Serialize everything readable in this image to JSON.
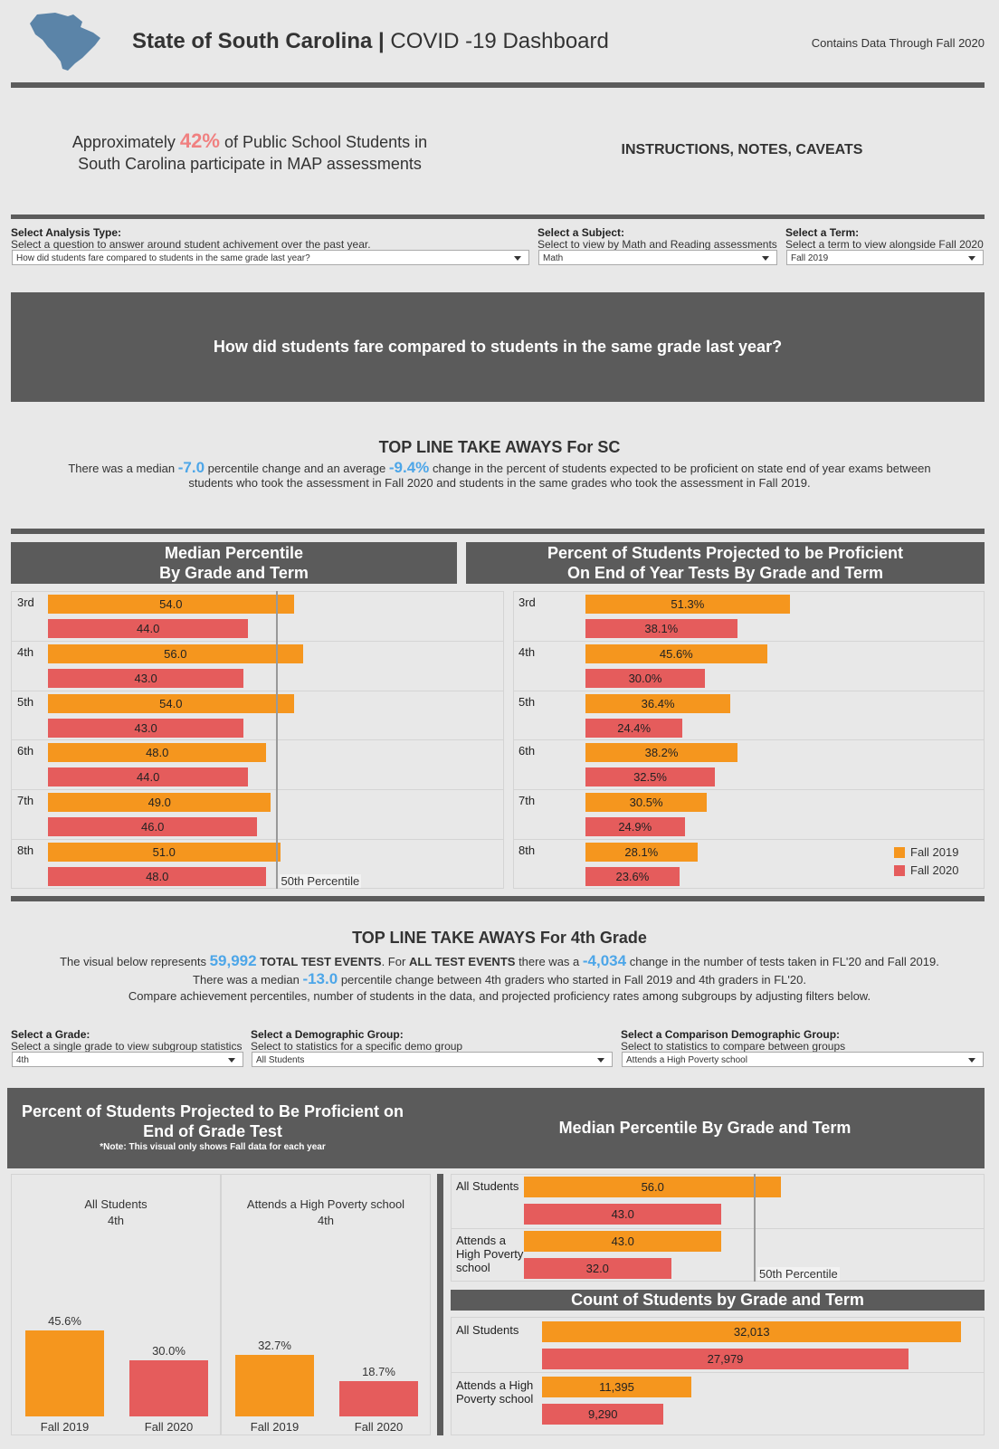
{
  "header": {
    "title_bold": "State of South Carolina |",
    "title_rest": "COVID -19 Dashboard",
    "note": "Contains Data Through Fall 2020"
  },
  "intro": {
    "pre": "Approximately",
    "highlight": "42%",
    "post": "of Public School Students in South Carolina participate in MAP assessments"
  },
  "instructions": "INSTRUCTIONS, NOTES, CAVEATS",
  "filters_top": [
    {
      "label": "Select Analysis Type:",
      "description": "Select a question to answer around student achivement over the past year.",
      "value": "How did students fare compared to students in the same grade last year?"
    },
    {
      "label": "Select a Subject:",
      "description": "Select to view by Math and Reading assessments",
      "value": "Math"
    },
    {
      "label": "Select a Term:",
      "description": "Select a term to view alongside Fall 2020",
      "value": "Fall 2019"
    }
  ],
  "question": "How did students fare compared to students in the same grade last year?",
  "takeaways_sc": {
    "title": "TOP LINE TAKE AWAYS For SC",
    "text": [
      "There was a median",
      "-7.0",
      "percentile change and an average",
      "-9.4%",
      "change in the percent of students expected to be proficient on state end of year exams between students who took the assessment in Fall 2020 and students in the same grades who took the assessment in Fall 2019."
    ]
  },
  "takeaways_grade": {
    "title": "TOP LINE TAKE AWAYS For 4th Grade",
    "line1": [
      "The visual below represents",
      "59,992",
      "TOTAL TEST EVENTS",
      ". For",
      "ALL TEST EVENTS",
      "there was a",
      "-4,034",
      "change in the number of tests taken in FL'20 and Fall 2019."
    ],
    "line2": [
      "There was a median",
      "-13.0",
      "percentile change between 4th graders who started in Fall 2019 and 4th graders in FL'20."
    ],
    "line3": "Compare achievement percentiles, number of students in the data, and projected proficiency rates among subgroups by adjusting filters below."
  },
  "filters_bottom": [
    {
      "label": "Select a Grade:",
      "description": "Select a single grade to view subgroup statistics",
      "value": "4th"
    },
    {
      "label": "Select a Demographic Group:",
      "description": "Select to statistics for a specific demo group",
      "value": "All Students"
    },
    {
      "label": "Select a Comparison Demographic Group:",
      "description": "Select to statistics to compare between groups",
      "value": "Attends a High Poverty school"
    }
  ],
  "chart_data": [
    {
      "type": "hbar",
      "title": [
        "Median Percentile",
        "By Grade and Term"
      ],
      "categories": [
        "3rd",
        "4th",
        "5th",
        "6th",
        "7th",
        "8th"
      ],
      "series": [
        {
          "color": "#f5961e",
          "values": [
            54,
            56,
            54,
            48,
            49,
            51
          ],
          "value_labels": [
            "54.0",
            "56.0",
            "54.0",
            "48.0",
            "49.0",
            "51.0"
          ]
        },
        {
          "color": "#e55c5c",
          "values": [
            44,
            43,
            43,
            44,
            46,
            48
          ],
          "value_labels": [
            "44.0",
            "43.0",
            "43.0",
            "44.0",
            "46.0",
            "48.0"
          ]
        }
      ],
      "xlim": [
        0,
        100
      ],
      "reference_line": {
        "value": 50,
        "label": "50th Percentile"
      }
    },
    {
      "type": "hbar",
      "title": [
        "Percent of Students Projected to be Proficient",
        "On End of Year Tests By Grade and Term"
      ],
      "categories": [
        "3rd",
        "4th",
        "5th",
        "6th",
        "7th",
        "8th"
      ],
      "series": [
        {
          "name": "Fall 2019",
          "color": "#f5961e",
          "values": [
            51.3,
            45.6,
            36.4,
            38.2,
            30.5,
            28.1
          ],
          "value_labels": [
            "51.3%",
            "45.6%",
            "36.4%",
            "38.2%",
            "30.5%",
            "28.1%"
          ]
        },
        {
          "name": "Fall 2020",
          "color": "#e55c5c",
          "values": [
            38.1,
            30.0,
            24.4,
            32.5,
            24.9,
            23.6
          ],
          "value_labels": [
            "38.1%",
            "30.0%",
            "24.4%",
            "32.5%",
            "24.9%",
            "23.6%"
          ]
        }
      ],
      "xlim": [
        0,
        100
      ],
      "legend": "lower right"
    },
    {
      "type": "vbar",
      "title": [
        "Percent of Students Projected to Be Proficient on",
        "End of Grade Test"
      ],
      "note": "*Note: This visual only shows Fall data for each year",
      "categories": [
        "Fall 2019",
        "Fall 2020"
      ],
      "colors": [
        "#f5961e",
        "#e55c5c"
      ],
      "ylim": [
        0,
        100
      ],
      "panels": [
        {
          "title": "All Students",
          "subtitle": "4th",
          "values": [
            45.6,
            30.0
          ],
          "value_labels": [
            "45.6%",
            "30.0%"
          ]
        },
        {
          "title": "Attends a High Poverty school",
          "subtitle": "4th",
          "values": [
            32.7,
            18.7
          ],
          "value_labels": [
            "32.7%",
            "18.7%"
          ]
        }
      ]
    },
    {
      "type": "hbar",
      "title": "Median Percentile By Grade and Term",
      "categories": [
        "All Students",
        "Attends a High Poverty school"
      ],
      "series": [
        {
          "color": "#f5961e",
          "values": [
            56,
            43
          ],
          "value_labels": [
            "56.0",
            "43.0"
          ]
        },
        {
          "color": "#e55c5c",
          "values": [
            43,
            32
          ],
          "value_labels": [
            "43.0",
            "32.0"
          ]
        }
      ],
      "xlim": [
        0,
        100
      ],
      "reference_line": {
        "value": 50,
        "label": "50th Percentile"
      }
    },
    {
      "type": "hbar",
      "title": "Count of Students by Grade and Term",
      "categories": [
        "All Students",
        "Attends a High Poverty school"
      ],
      "series": [
        {
          "color": "#f5961e",
          "values": [
            32013,
            11395
          ],
          "value_labels": [
            "32,013",
            "11,395"
          ]
        },
        {
          "color": "#e55c5c",
          "values": [
            27979,
            9290
          ],
          "value_labels": [
            "27,979",
            "9,290"
          ]
        }
      ],
      "xlim": [
        0,
        33500
      ]
    }
  ]
}
